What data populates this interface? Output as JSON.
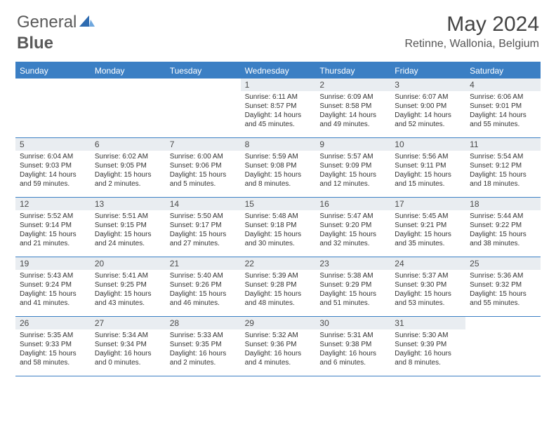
{
  "brand": {
    "part1": "General",
    "part2": "Blue"
  },
  "title": "May 2024",
  "location": "Retinne, Wallonia, Belgium",
  "colors": {
    "header_bar": "#3b7fc4",
    "daynum_bg": "#e9edf1",
    "text": "#333333",
    "logo_text": "#5a5a5a",
    "logo_accent": "#2e6bb0"
  },
  "day_names": [
    "Sunday",
    "Monday",
    "Tuesday",
    "Wednesday",
    "Thursday",
    "Friday",
    "Saturday"
  ],
  "weeks": [
    [
      {
        "n": "",
        "sr": "",
        "ss": "",
        "dl": ""
      },
      {
        "n": "",
        "sr": "",
        "ss": "",
        "dl": ""
      },
      {
        "n": "",
        "sr": "",
        "ss": "",
        "dl": ""
      },
      {
        "n": "1",
        "sr": "Sunrise: 6:11 AM",
        "ss": "Sunset: 8:57 PM",
        "dl": "Daylight: 14 hours and 45 minutes."
      },
      {
        "n": "2",
        "sr": "Sunrise: 6:09 AM",
        "ss": "Sunset: 8:58 PM",
        "dl": "Daylight: 14 hours and 49 minutes."
      },
      {
        "n": "3",
        "sr": "Sunrise: 6:07 AM",
        "ss": "Sunset: 9:00 PM",
        "dl": "Daylight: 14 hours and 52 minutes."
      },
      {
        "n": "4",
        "sr": "Sunrise: 6:06 AM",
        "ss": "Sunset: 9:01 PM",
        "dl": "Daylight: 14 hours and 55 minutes."
      }
    ],
    [
      {
        "n": "5",
        "sr": "Sunrise: 6:04 AM",
        "ss": "Sunset: 9:03 PM",
        "dl": "Daylight: 14 hours and 59 minutes."
      },
      {
        "n": "6",
        "sr": "Sunrise: 6:02 AM",
        "ss": "Sunset: 9:05 PM",
        "dl": "Daylight: 15 hours and 2 minutes."
      },
      {
        "n": "7",
        "sr": "Sunrise: 6:00 AM",
        "ss": "Sunset: 9:06 PM",
        "dl": "Daylight: 15 hours and 5 minutes."
      },
      {
        "n": "8",
        "sr": "Sunrise: 5:59 AM",
        "ss": "Sunset: 9:08 PM",
        "dl": "Daylight: 15 hours and 8 minutes."
      },
      {
        "n": "9",
        "sr": "Sunrise: 5:57 AM",
        "ss": "Sunset: 9:09 PM",
        "dl": "Daylight: 15 hours and 12 minutes."
      },
      {
        "n": "10",
        "sr": "Sunrise: 5:56 AM",
        "ss": "Sunset: 9:11 PM",
        "dl": "Daylight: 15 hours and 15 minutes."
      },
      {
        "n": "11",
        "sr": "Sunrise: 5:54 AM",
        "ss": "Sunset: 9:12 PM",
        "dl": "Daylight: 15 hours and 18 minutes."
      }
    ],
    [
      {
        "n": "12",
        "sr": "Sunrise: 5:52 AM",
        "ss": "Sunset: 9:14 PM",
        "dl": "Daylight: 15 hours and 21 minutes."
      },
      {
        "n": "13",
        "sr": "Sunrise: 5:51 AM",
        "ss": "Sunset: 9:15 PM",
        "dl": "Daylight: 15 hours and 24 minutes."
      },
      {
        "n": "14",
        "sr": "Sunrise: 5:50 AM",
        "ss": "Sunset: 9:17 PM",
        "dl": "Daylight: 15 hours and 27 minutes."
      },
      {
        "n": "15",
        "sr": "Sunrise: 5:48 AM",
        "ss": "Sunset: 9:18 PM",
        "dl": "Daylight: 15 hours and 30 minutes."
      },
      {
        "n": "16",
        "sr": "Sunrise: 5:47 AM",
        "ss": "Sunset: 9:20 PM",
        "dl": "Daylight: 15 hours and 32 minutes."
      },
      {
        "n": "17",
        "sr": "Sunrise: 5:45 AM",
        "ss": "Sunset: 9:21 PM",
        "dl": "Daylight: 15 hours and 35 minutes."
      },
      {
        "n": "18",
        "sr": "Sunrise: 5:44 AM",
        "ss": "Sunset: 9:22 PM",
        "dl": "Daylight: 15 hours and 38 minutes."
      }
    ],
    [
      {
        "n": "19",
        "sr": "Sunrise: 5:43 AM",
        "ss": "Sunset: 9:24 PM",
        "dl": "Daylight: 15 hours and 41 minutes."
      },
      {
        "n": "20",
        "sr": "Sunrise: 5:41 AM",
        "ss": "Sunset: 9:25 PM",
        "dl": "Daylight: 15 hours and 43 minutes."
      },
      {
        "n": "21",
        "sr": "Sunrise: 5:40 AM",
        "ss": "Sunset: 9:26 PM",
        "dl": "Daylight: 15 hours and 46 minutes."
      },
      {
        "n": "22",
        "sr": "Sunrise: 5:39 AM",
        "ss": "Sunset: 9:28 PM",
        "dl": "Daylight: 15 hours and 48 minutes."
      },
      {
        "n": "23",
        "sr": "Sunrise: 5:38 AM",
        "ss": "Sunset: 9:29 PM",
        "dl": "Daylight: 15 hours and 51 minutes."
      },
      {
        "n": "24",
        "sr": "Sunrise: 5:37 AM",
        "ss": "Sunset: 9:30 PM",
        "dl": "Daylight: 15 hours and 53 minutes."
      },
      {
        "n": "25",
        "sr": "Sunrise: 5:36 AM",
        "ss": "Sunset: 9:32 PM",
        "dl": "Daylight: 15 hours and 55 minutes."
      }
    ],
    [
      {
        "n": "26",
        "sr": "Sunrise: 5:35 AM",
        "ss": "Sunset: 9:33 PM",
        "dl": "Daylight: 15 hours and 58 minutes."
      },
      {
        "n": "27",
        "sr": "Sunrise: 5:34 AM",
        "ss": "Sunset: 9:34 PM",
        "dl": "Daylight: 16 hours and 0 minutes."
      },
      {
        "n": "28",
        "sr": "Sunrise: 5:33 AM",
        "ss": "Sunset: 9:35 PM",
        "dl": "Daylight: 16 hours and 2 minutes."
      },
      {
        "n": "29",
        "sr": "Sunrise: 5:32 AM",
        "ss": "Sunset: 9:36 PM",
        "dl": "Daylight: 16 hours and 4 minutes."
      },
      {
        "n": "30",
        "sr": "Sunrise: 5:31 AM",
        "ss": "Sunset: 9:38 PM",
        "dl": "Daylight: 16 hours and 6 minutes."
      },
      {
        "n": "31",
        "sr": "Sunrise: 5:30 AM",
        "ss": "Sunset: 9:39 PM",
        "dl": "Daylight: 16 hours and 8 minutes."
      },
      {
        "n": "",
        "sr": "",
        "ss": "",
        "dl": ""
      }
    ]
  ]
}
